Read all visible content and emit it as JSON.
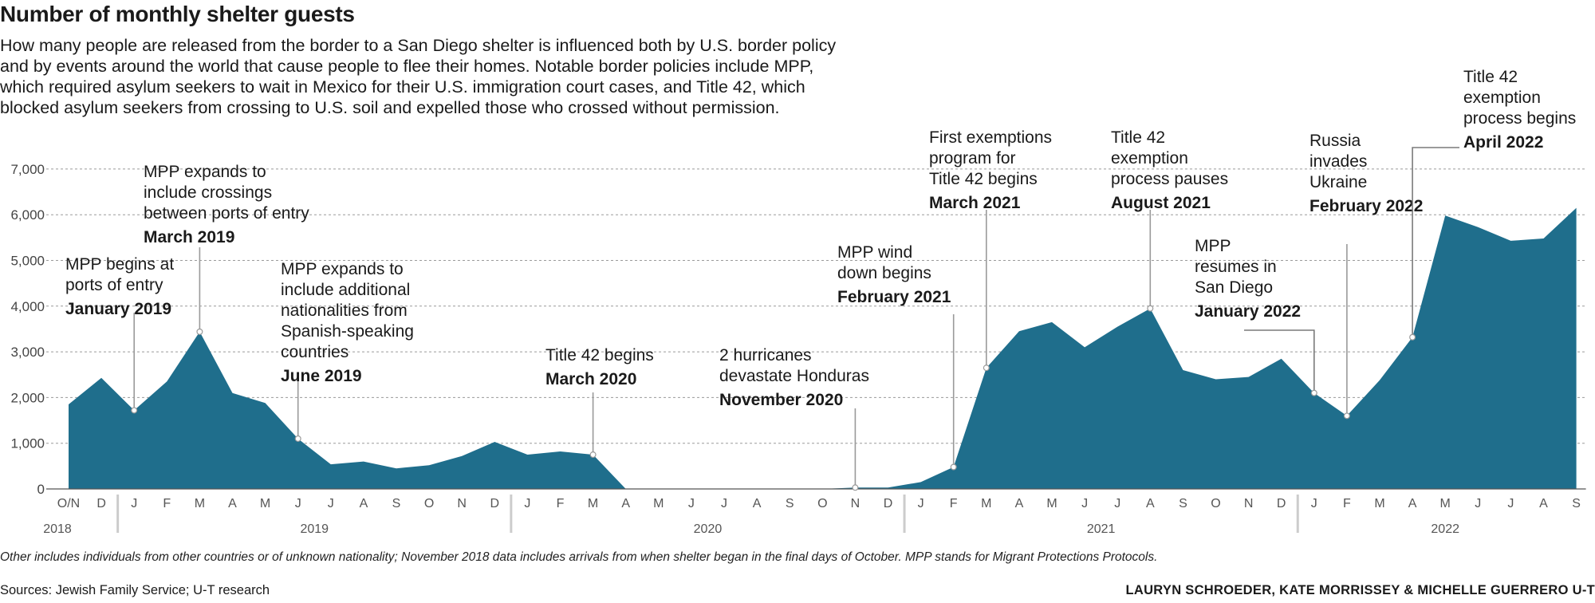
{
  "title": "Number of monthly shelter guests",
  "description": [
    "How many people are released from the border to a San Diego shelter is influenced both by U.S. border policy",
    "and by events around the world that cause people to flee their homes. Notable border policies include MPP,",
    "which required asylum seekers to wait in Mexico for their U.S. immigration court cases, and Title 42, which",
    "blocked asylum seekers from crossing to U.S. soil and expelled those who crossed without permission."
  ],
  "footnote": "Other includes individuals from other countries or of unknown nationality; November 2018 data includes arrivals from when shelter began in the final days of October. MPP stands for Migrant Protections Protocols.",
  "sources": "Sources: Jewish Family Service; U-T research",
  "credit": "LAURYN SCHROEDER, KATE MORRISSEY & MICHELLE GUERRERO U-T",
  "colors": {
    "area": "#1f6e8c",
    "grid": "#9a9a9a",
    "text": "#1a1a1a",
    "axis": "#555555"
  },
  "chart_data": {
    "type": "area",
    "x_month_labels": [
      "O/N",
      "D",
      "J",
      "F",
      "M",
      "A",
      "M",
      "J",
      "J",
      "A",
      "S",
      "O",
      "N",
      "D",
      "J",
      "F",
      "M",
      "A",
      "M",
      "J",
      "J",
      "A",
      "S",
      "O",
      "N",
      "D",
      "J",
      "F",
      "M",
      "A",
      "M",
      "J",
      "J",
      "A",
      "S",
      "O",
      "N",
      "D",
      "J",
      "F",
      "M",
      "A",
      "M",
      "J",
      "J",
      "A",
      "S"
    ],
    "x_year_labels": [
      {
        "label": "2018",
        "start": 0,
        "end": 1
      },
      {
        "label": "2019",
        "start": 2,
        "end": 13
      },
      {
        "label": "2020",
        "start": 14,
        "end": 25
      },
      {
        "label": "2021",
        "start": 26,
        "end": 37
      },
      {
        "label": "2022",
        "start": 38,
        "end": 46
      }
    ],
    "values": [
      1850,
      2430,
      1720,
      2350,
      3440,
      2100,
      1880,
      1100,
      540,
      600,
      450,
      520,
      720,
      1030,
      750,
      820,
      750,
      0,
      0,
      0,
      0,
      0,
      0,
      0,
      30,
      30,
      150,
      480,
      2650,
      3450,
      3650,
      3100,
      3550,
      3950,
      2600,
      2400,
      2450,
      2850,
      2100,
      1600,
      2380,
      3320,
      5980,
      5730,
      5430,
      5480,
      6150
    ],
    "ylim": [
      0,
      7000
    ],
    "yticks": [
      0,
      1000,
      2000,
      3000,
      4000,
      5000,
      6000,
      7000
    ],
    "ytick_labels": [
      "0",
      "1,000",
      "2,000",
      "3,000",
      "4,000",
      "5,000",
      "6,000",
      "7,000"
    ],
    "grid": true,
    "annotations": [
      {
        "index": 2,
        "lines": [
          "MPP begins at",
          "ports of entry"
        ],
        "date": "January 2019"
      },
      {
        "index": 4,
        "lines": [
          "MPP expands to",
          "include crossings",
          "between ports of entry"
        ],
        "date": "March 2019"
      },
      {
        "index": 7,
        "lines": [
          "MPP expands to",
          "include additional",
          "nationalities from",
          "Spanish-speaking",
          "countries"
        ],
        "date": "June 2019"
      },
      {
        "index": 16,
        "lines": [
          "Title 42 begins"
        ],
        "date": "March 2020"
      },
      {
        "index": 24,
        "lines": [
          "2 hurricanes",
          "devastate Honduras"
        ],
        "date": "November 2020"
      },
      {
        "index": 27,
        "lines": [
          "MPP wind",
          "down begins"
        ],
        "date": "February 2021"
      },
      {
        "index": 28,
        "lines": [
          "First exemptions",
          "program for",
          "Title 42 begins"
        ],
        "date": "March 2021"
      },
      {
        "index": 33,
        "lines": [
          "Title 42",
          "exemption",
          "process pauses"
        ],
        "date": "August 2021"
      },
      {
        "index": 38,
        "lines": [
          "MPP",
          "resumes in",
          "San Diego"
        ],
        "date": "January 2022"
      },
      {
        "index": 39,
        "lines": [
          "Russia",
          "invades",
          "Ukraine"
        ],
        "date": "February 2022"
      },
      {
        "index": 41,
        "lines": [
          "Title 42",
          "exemption",
          "process begins"
        ],
        "date": "April 2022"
      }
    ]
  }
}
